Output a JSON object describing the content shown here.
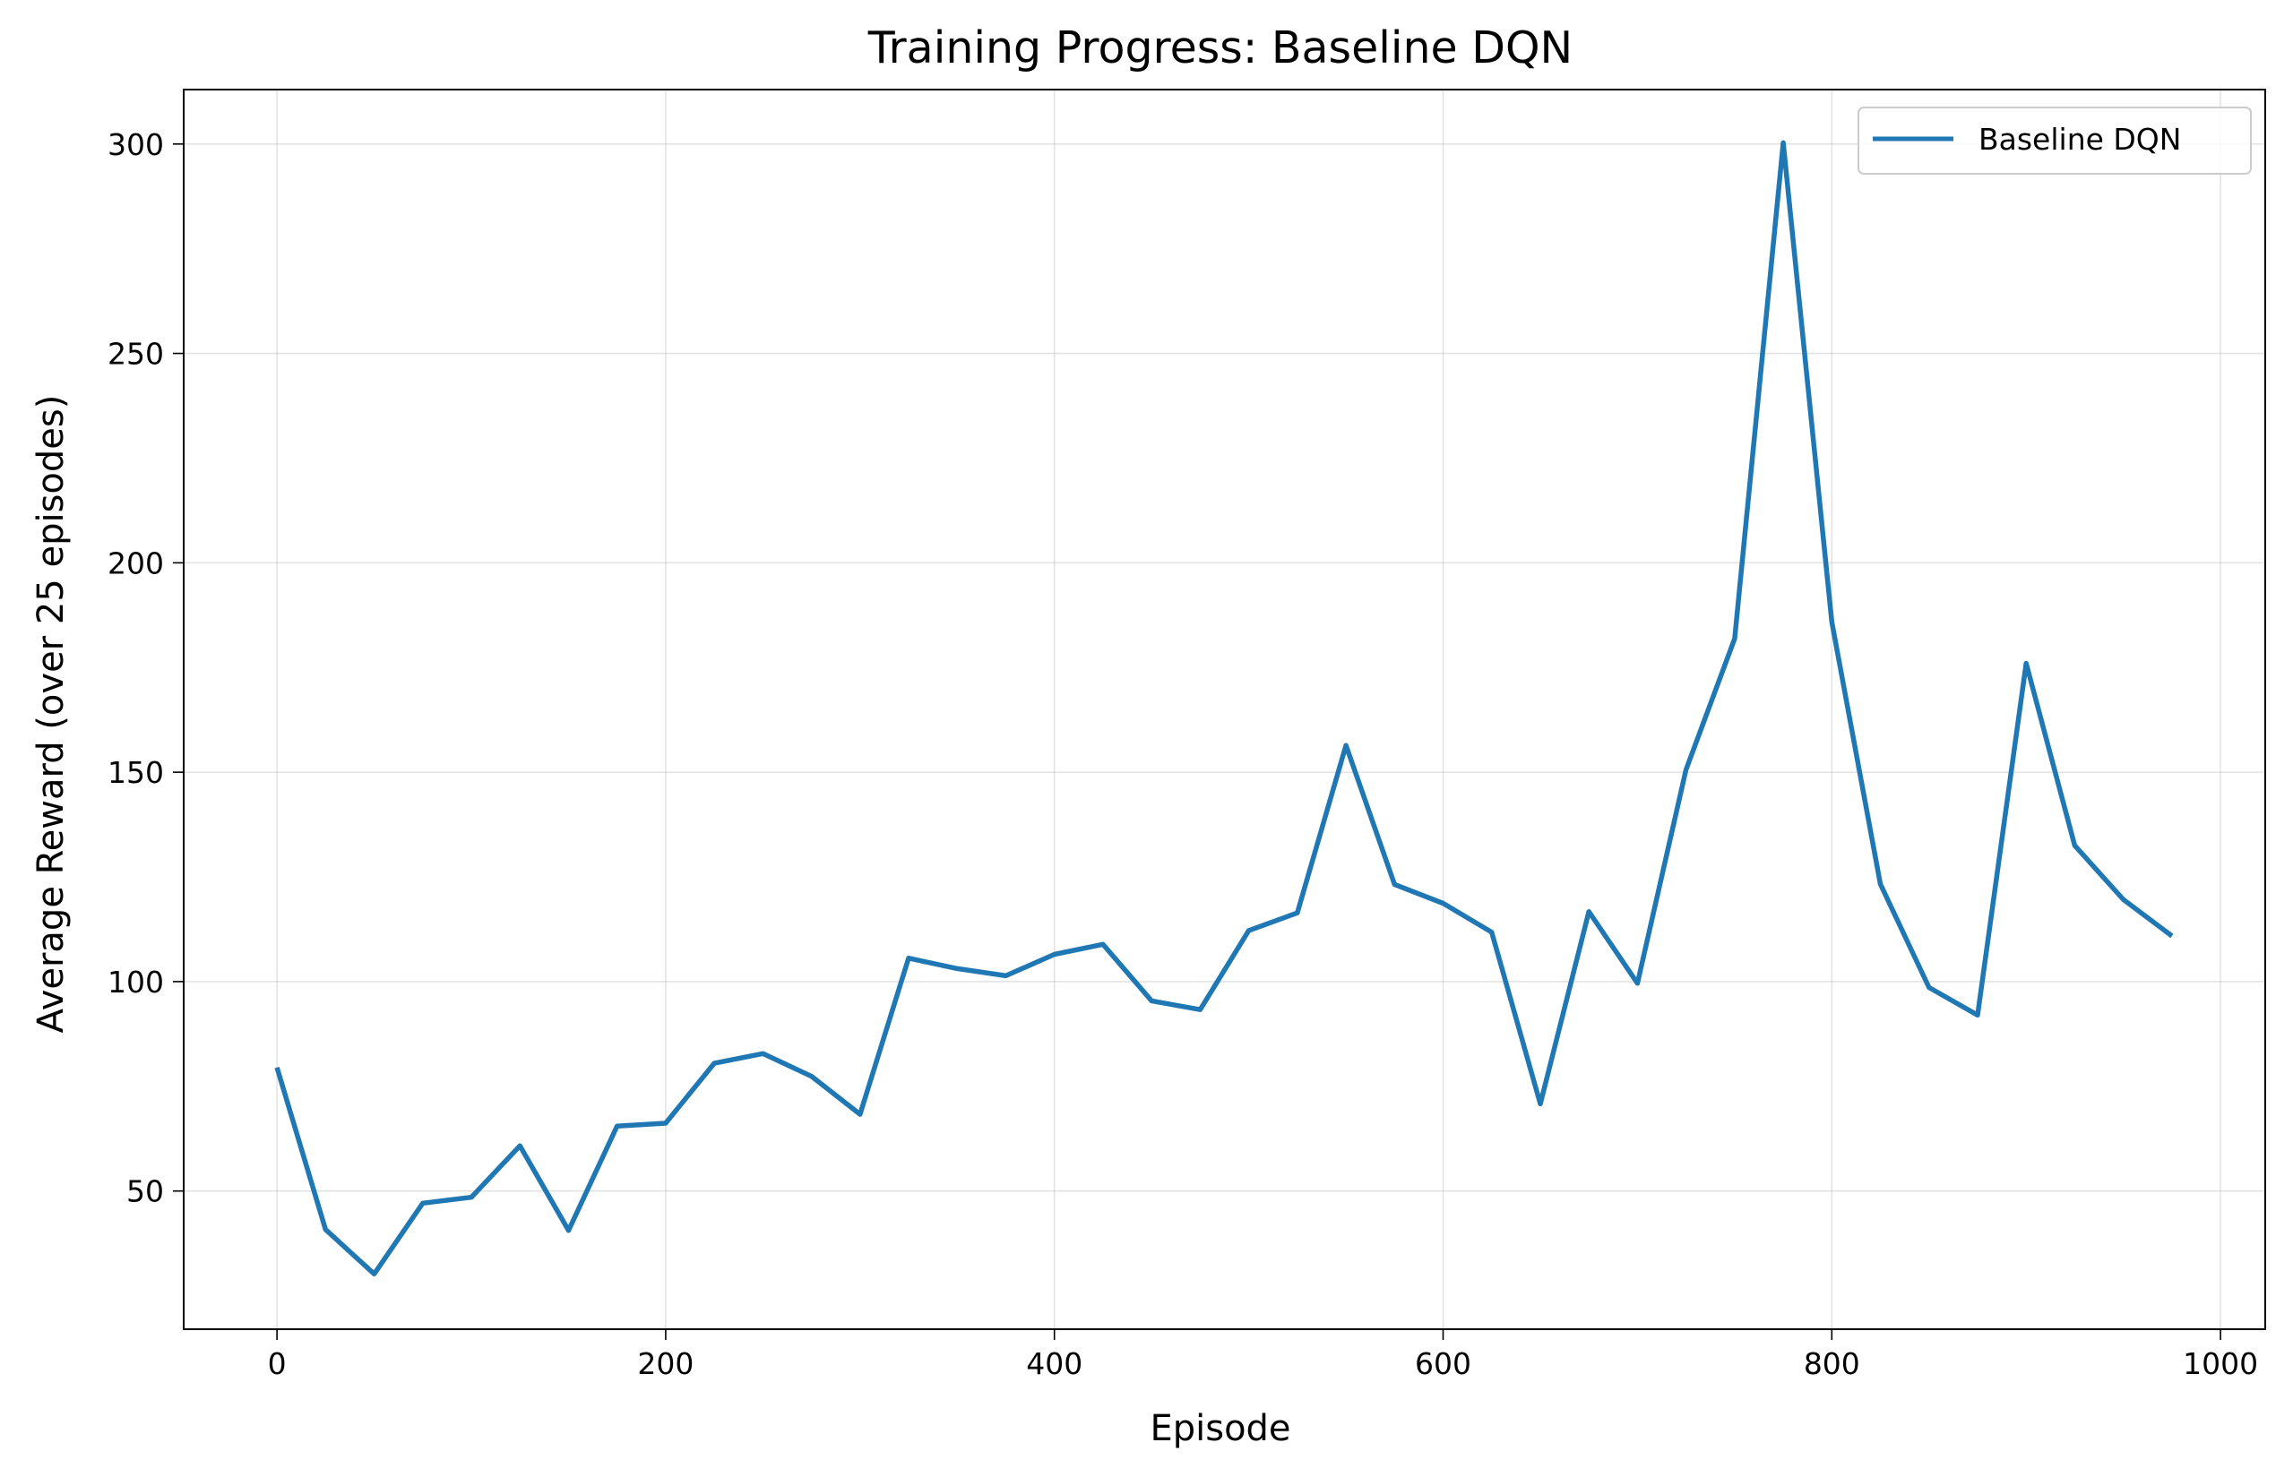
{
  "chart_data": {
    "type": "line",
    "title": "Training Progress: Baseline DQN",
    "xlabel": "Episode",
    "ylabel": "Average Reward (over 25 episodes)",
    "xlim": [
      -48,
      1023
    ],
    "ylim": [
      17,
      313
    ],
    "xticks": [
      0,
      200,
      400,
      600,
      800,
      1000
    ],
    "yticks": [
      50,
      100,
      150,
      200,
      250,
      300
    ],
    "grid": true,
    "legend_position": "top-right",
    "series": [
      {
        "name": "Baseline DQN",
        "color": "#1f77b4",
        "x": [
          0,
          25,
          50,
          75,
          100,
          125,
          150,
          175,
          200,
          225,
          250,
          275,
          300,
          325,
          350,
          375,
          400,
          425,
          450,
          475,
          500,
          525,
          550,
          575,
          600,
          625,
          650,
          675,
          700,
          725,
          750,
          775,
          800,
          825,
          850,
          875,
          900,
          925,
          950,
          975
        ],
        "y": [
          79.5,
          40.8,
          30.2,
          47.1,
          48.5,
          60.8,
          40.6,
          65.5,
          66.2,
          80.5,
          82.8,
          77.4,
          68.3,
          105.6,
          103.1,
          101.4,
          106.5,
          108.9,
          95.4,
          93.3,
          112.2,
          116.4,
          156.4,
          123.2,
          118.7,
          111.8,
          70.8,
          116.7,
          99.6,
          150.6,
          181.9,
          300.3,
          185.9,
          123.3,
          98.6,
          92.0,
          176.0,
          132.5,
          119.6,
          110.9
        ]
      }
    ]
  }
}
